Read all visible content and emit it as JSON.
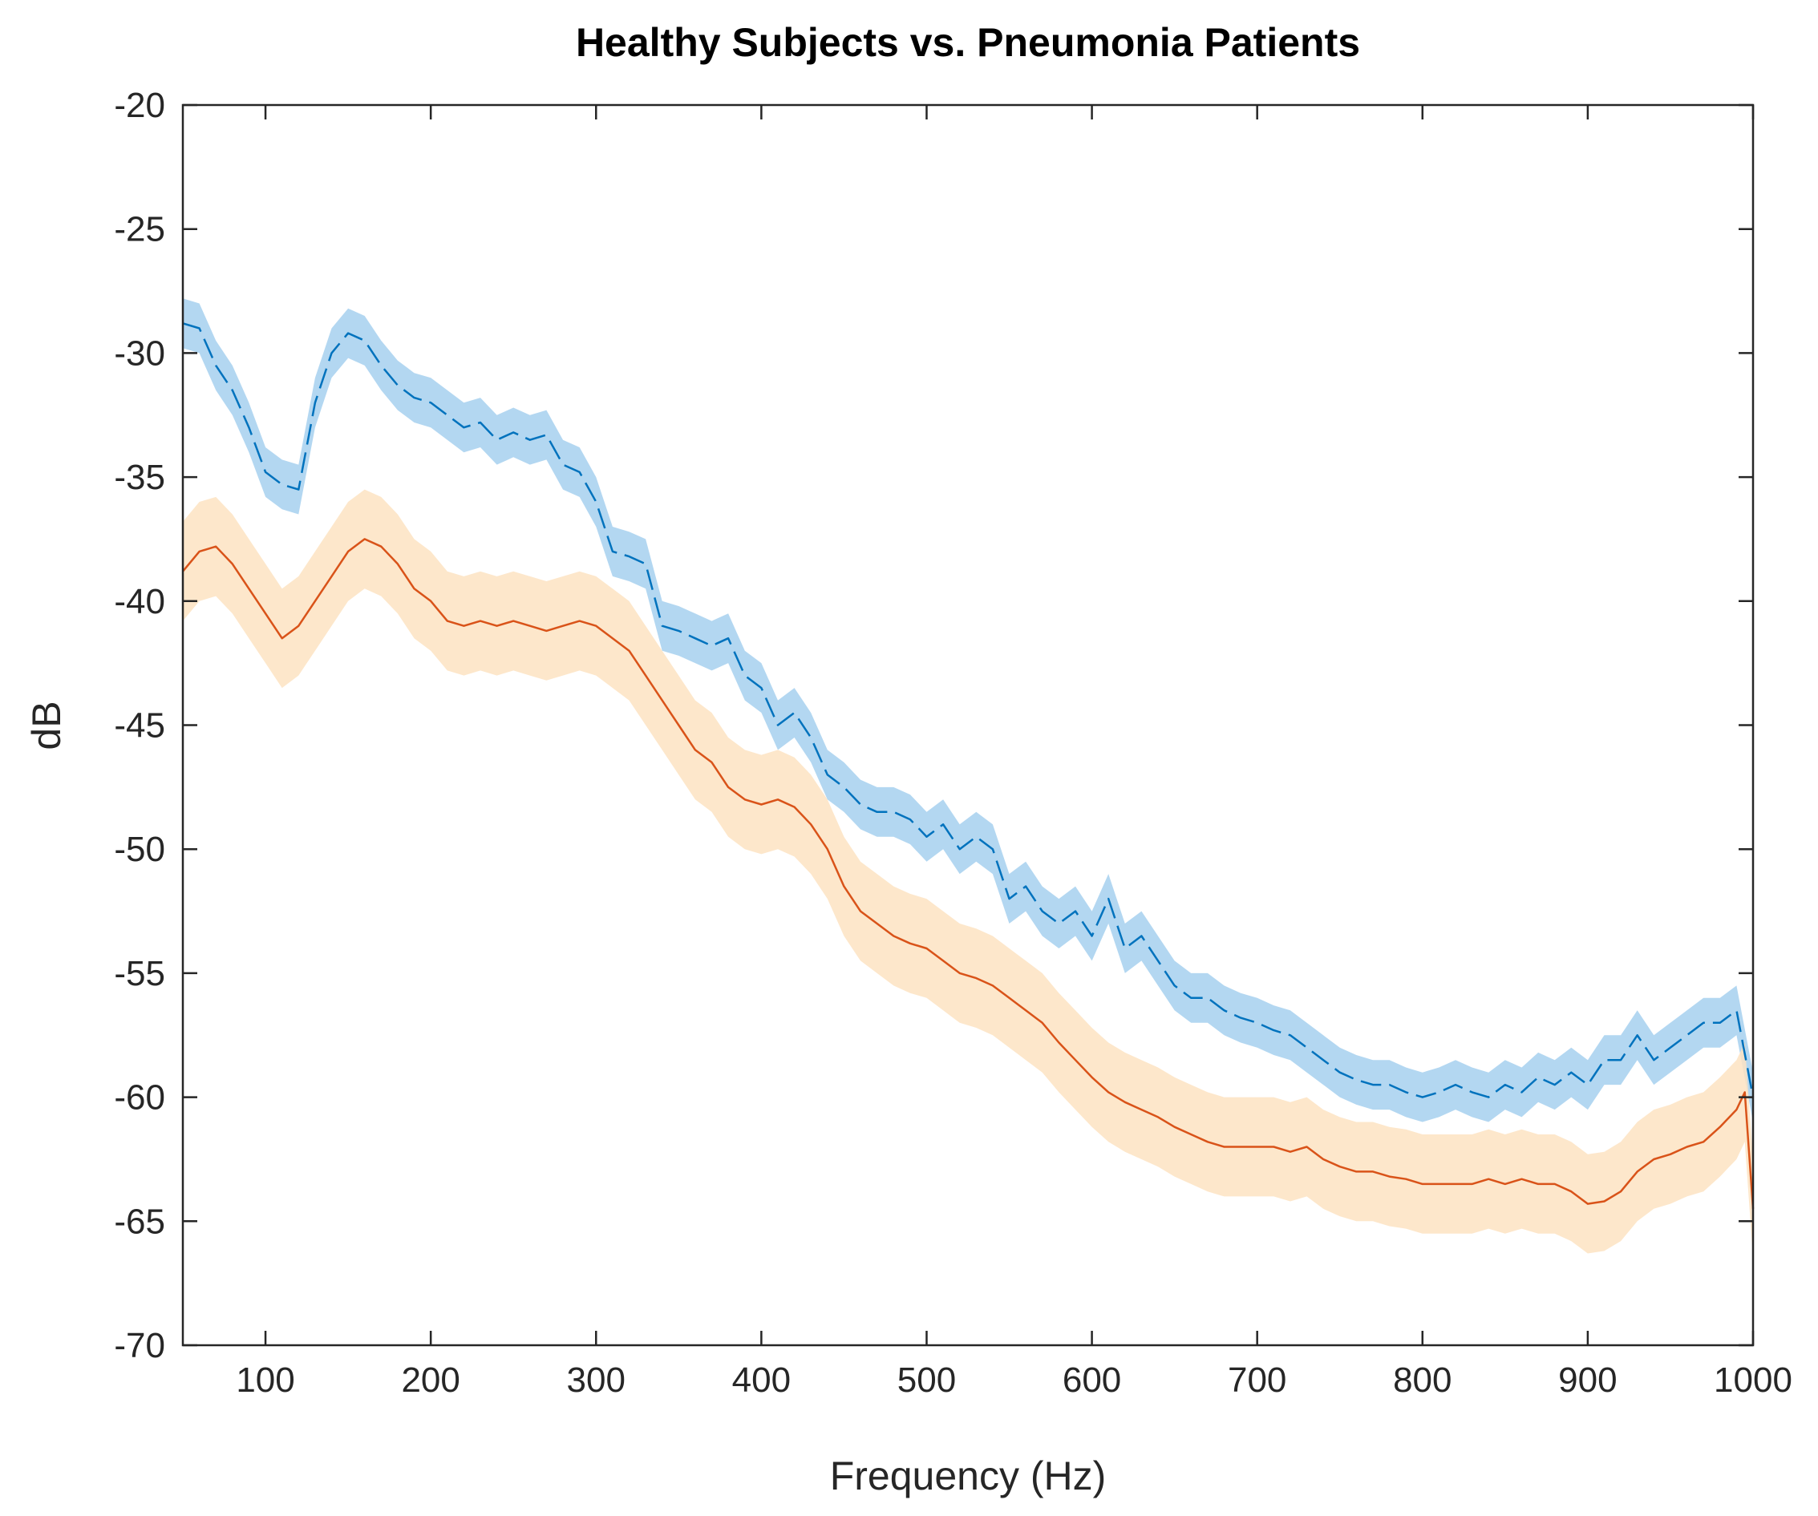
{
  "chart_data": {
    "type": "line",
    "title": "Healthy Subjects vs. Pneumonia Patients",
    "xlabel": "Frequency (Hz)",
    "ylabel": "dB",
    "xlim": [
      50,
      1000
    ],
    "ylim": [
      -70,
      -20
    ],
    "xticks": [
      100,
      200,
      300,
      400,
      500,
      600,
      700,
      800,
      900,
      1000
    ],
    "xtick_labels": [
      "100",
      "200",
      "300",
      "400",
      "500",
      "600",
      "700",
      "800",
      "900",
      "1000"
    ],
    "yticks": [
      -20,
      -25,
      -30,
      -35,
      -40,
      -45,
      -50,
      -55,
      -60,
      -65,
      -70
    ],
    "ytick_labels": [
      "-20",
      "-25",
      "-30",
      "-35",
      "-40",
      "-45",
      "-50",
      "-55",
      "-60",
      "-65",
      "-70"
    ],
    "grid": false,
    "legend": "none",
    "series": [
      {
        "name": "Healthy Subjects",
        "color": "#0072BD",
        "band_color": "#A6D0EE",
        "line_style": "dashed",
        "band_halfwidth": 1.0,
        "x": [
          50,
          60,
          70,
          80,
          90,
          100,
          110,
          120,
          130,
          140,
          150,
          160,
          170,
          180,
          190,
          200,
          210,
          220,
          230,
          240,
          250,
          260,
          270,
          280,
          290,
          300,
          310,
          320,
          330,
          340,
          350,
          360,
          370,
          380,
          390,
          400,
          410,
          420,
          430,
          440,
          450,
          460,
          470,
          480,
          490,
          500,
          510,
          520,
          530,
          540,
          550,
          560,
          570,
          580,
          590,
          600,
          610,
          620,
          630,
          640,
          650,
          660,
          670,
          680,
          690,
          700,
          710,
          720,
          730,
          740,
          750,
          760,
          770,
          780,
          790,
          800,
          810,
          820,
          830,
          840,
          850,
          860,
          870,
          880,
          890,
          900,
          910,
          920,
          930,
          940,
          950,
          960,
          970,
          980,
          990,
          1000
        ],
        "y": [
          -28.8,
          -29.0,
          -30.5,
          -31.5,
          -33.0,
          -34.8,
          -35.3,
          -35.5,
          -32.0,
          -30.0,
          -29.2,
          -29.5,
          -30.5,
          -31.3,
          -31.8,
          -32.0,
          -32.5,
          -33.0,
          -32.8,
          -33.5,
          -33.2,
          -33.5,
          -33.3,
          -34.5,
          -34.8,
          -36.0,
          -38.0,
          -38.2,
          -38.5,
          -41.0,
          -41.2,
          -41.5,
          -41.8,
          -41.5,
          -43.0,
          -43.5,
          -45.0,
          -44.5,
          -45.5,
          -47.0,
          -47.5,
          -48.2,
          -48.5,
          -48.5,
          -48.8,
          -49.5,
          -49.0,
          -50.0,
          -49.5,
          -50.0,
          -52.0,
          -51.5,
          -52.5,
          -53.0,
          -52.5,
          -53.5,
          -52.0,
          -54.0,
          -53.5,
          -54.5,
          -55.5,
          -56.0,
          -56.0,
          -56.5,
          -56.8,
          -57.0,
          -57.3,
          -57.5,
          -58.0,
          -58.5,
          -59.0,
          -59.3,
          -59.5,
          -59.5,
          -59.8,
          -60.0,
          -59.8,
          -59.5,
          -59.8,
          -60.0,
          -59.5,
          -59.8,
          -59.2,
          -59.5,
          -59.0,
          -59.5,
          -58.5,
          -58.5,
          -57.5,
          -58.5,
          -58.0,
          -57.5,
          -57.0,
          -57.0,
          -56.5,
          -60.0
        ]
      },
      {
        "name": "Pneumonia Patients",
        "color": "#D95319",
        "band_color": "#FDE3C2",
        "line_style": "solid",
        "band_halfwidth": 2.0,
        "x": [
          50,
          60,
          70,
          80,
          90,
          100,
          110,
          120,
          130,
          140,
          150,
          160,
          170,
          180,
          190,
          200,
          210,
          220,
          230,
          240,
          250,
          260,
          270,
          280,
          290,
          300,
          310,
          320,
          330,
          340,
          350,
          360,
          370,
          380,
          390,
          400,
          410,
          420,
          430,
          440,
          450,
          460,
          470,
          480,
          490,
          500,
          510,
          520,
          530,
          540,
          550,
          560,
          570,
          580,
          590,
          600,
          610,
          620,
          630,
          640,
          650,
          660,
          670,
          680,
          690,
          700,
          710,
          720,
          730,
          740,
          750,
          760,
          770,
          780,
          790,
          800,
          810,
          820,
          830,
          840,
          850,
          860,
          870,
          880,
          890,
          900,
          910,
          920,
          930,
          940,
          950,
          960,
          970,
          980,
          990,
          995,
          1000
        ],
        "y": [
          -38.8,
          -38.0,
          -37.8,
          -38.5,
          -39.5,
          -40.5,
          -41.5,
          -41.0,
          -40.0,
          -39.0,
          -38.0,
          -37.5,
          -37.8,
          -38.5,
          -39.5,
          -40.0,
          -40.8,
          -41.0,
          -40.8,
          -41.0,
          -40.8,
          -41.0,
          -41.2,
          -41.0,
          -40.8,
          -41.0,
          -41.5,
          -42.0,
          -43.0,
          -44.0,
          -45.0,
          -46.0,
          -46.5,
          -47.5,
          -48.0,
          -48.2,
          -48.0,
          -48.3,
          -49.0,
          -50.0,
          -51.5,
          -52.5,
          -53.0,
          -53.5,
          -53.8,
          -54.0,
          -54.5,
          -55.0,
          -55.2,
          -55.5,
          -56.0,
          -56.5,
          -57.0,
          -57.8,
          -58.5,
          -59.2,
          -59.8,
          -60.2,
          -60.5,
          -60.8,
          -61.2,
          -61.5,
          -61.8,
          -62.0,
          -62.0,
          -62.0,
          -62.0,
          -62.2,
          -62.0,
          -62.5,
          -62.8,
          -63.0,
          -63.0,
          -63.2,
          -63.3,
          -63.5,
          -63.5,
          -63.5,
          -63.5,
          -63.3,
          -63.5,
          -63.3,
          -63.5,
          -63.5,
          -63.8,
          -64.3,
          -64.2,
          -63.8,
          -63.0,
          -62.5,
          -62.3,
          -62.0,
          -61.8,
          -61.2,
          -60.5,
          -59.8,
          -64.5
        ]
      }
    ]
  }
}
